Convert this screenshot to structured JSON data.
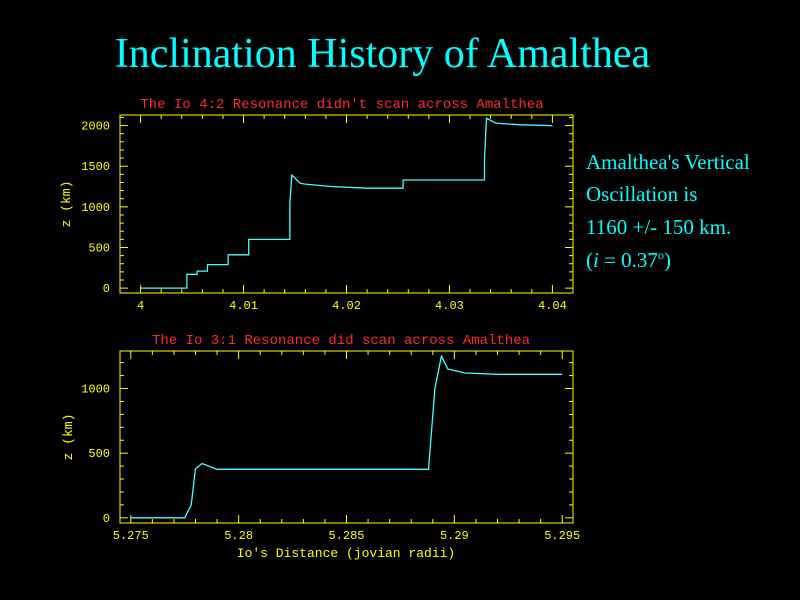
{
  "title": "Inclination History of Amalthea",
  "annotation": {
    "line1": "Amalthea's Vertical",
    "line2": "Oscillation is",
    "line3": "1160 +/-  150 km.",
    "line4_open": "(",
    "line4_var": "i",
    "line4_mid": " = 0.37",
    "line4_sup": "o",
    "line4_close": ")"
  },
  "colors": {
    "title": "#00ffff",
    "axes": "#ffff00",
    "plot_title": "#ff2a2a",
    "series": "#44ffff"
  },
  "chart_data": [
    {
      "type": "line",
      "title": "The Io 4:2 Resonance didn't scan across Amalthea",
      "xlabel": "",
      "ylabel": "z (km)",
      "xlim": [
        3.998,
        4.042
      ],
      "ylim": [
        -60,
        2130
      ],
      "xticks": [
        4,
        4.01,
        4.02,
        4.03,
        4.04
      ],
      "xtick_labels": [
        "4",
        "4.01",
        "4.02",
        "4.03",
        "4.04"
      ],
      "yticks": [
        0,
        500,
        1000,
        1500,
        2000
      ],
      "ytick_labels": [
        "0",
        "500",
        "1000",
        "1500",
        "2000"
      ],
      "series": [
        {
          "x": [
            4.0,
            4.0045,
            4.0045,
            4.0055,
            4.0055,
            4.0065,
            4.0065,
            4.0085,
            4.0085,
            4.0105,
            4.0105,
            4.0145,
            4.0145,
            4.0147,
            4.0155,
            4.016,
            4.0185,
            4.022,
            4.0255,
            4.0255,
            4.03,
            4.0334,
            4.0334,
            4.0336,
            4.0345,
            4.0355,
            4.037,
            4.04
          ],
          "y": [
            0,
            0,
            170,
            170,
            210,
            210,
            290,
            290,
            410,
            410,
            600,
            600,
            1050,
            1390,
            1290,
            1280,
            1250,
            1230,
            1230,
            1330,
            1330,
            1330,
            1600,
            2090,
            2030,
            2020,
            2010,
            2000
          ]
        }
      ]
    },
    {
      "type": "line",
      "title": "The Io 3:1 Resonance did scan across Amalthea",
      "xlabel": "Io's Distance (jovian radii)",
      "ylabel": "z (km)",
      "xlim": [
        5.2745,
        5.2955
      ],
      "ylim": [
        -40,
        1290
      ],
      "xticks": [
        5.275,
        5.28,
        5.285,
        5.29,
        5.295
      ],
      "xtick_labels": [
        "5.275",
        "5.28",
        "5.285",
        "5.29",
        "5.295"
      ],
      "yticks": [
        0,
        500,
        1000
      ],
      "ytick_labels": [
        "0",
        "500",
        "1000"
      ],
      "series": [
        {
          "x": [
            5.275,
            5.2775,
            5.2778,
            5.278,
            5.2783,
            5.279,
            5.281,
            5.285,
            5.2888,
            5.2891,
            5.2894,
            5.2897,
            5.2905,
            5.292,
            5.295
          ],
          "y": [
            0,
            0,
            100,
            380,
            420,
            375,
            375,
            375,
            375,
            1000,
            1250,
            1150,
            1120,
            1110,
            1110
          ]
        }
      ]
    }
  ]
}
